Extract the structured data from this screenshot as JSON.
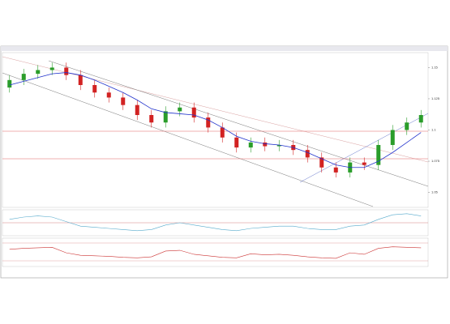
{
  "chart_data": [
    {
      "type": "candlestick",
      "open": [
        1.134,
        1.14,
        1.145,
        1.148,
        1.15,
        1.144,
        1.136,
        1.13,
        1.126,
        1.12,
        1.112,
        1.106,
        1.115,
        1.118,
        1.11,
        1.102,
        1.094,
        1.086,
        1.09,
        1.087,
        1.088,
        1.084,
        1.078,
        1.07,
        1.066,
        1.074,
        1.072,
        1.088,
        1.1,
        1.106
      ],
      "high": [
        1.144,
        1.149,
        1.152,
        1.154,
        1.154,
        1.148,
        1.14,
        1.134,
        1.13,
        1.124,
        1.116,
        1.119,
        1.122,
        1.122,
        1.114,
        1.106,
        1.098,
        1.094,
        1.094,
        1.092,
        1.092,
        1.088,
        1.082,
        1.074,
        1.078,
        1.078,
        1.092,
        1.104,
        1.11,
        1.116
      ],
      "low": [
        1.13,
        1.136,
        1.141,
        1.144,
        1.14,
        1.132,
        1.126,
        1.122,
        1.116,
        1.108,
        1.102,
        1.102,
        1.111,
        1.106,
        1.098,
        1.09,
        1.082,
        1.082,
        1.083,
        1.083,
        1.08,
        1.074,
        1.066,
        1.062,
        1.062,
        1.068,
        1.068,
        1.084,
        1.096,
        1.102
      ],
      "close": [
        1.14,
        1.145,
        1.148,
        1.15,
        1.144,
        1.136,
        1.13,
        1.126,
        1.12,
        1.112,
        1.106,
        1.115,
        1.118,
        1.11,
        1.102,
        1.094,
        1.086,
        1.09,
        1.087,
        1.088,
        1.084,
        1.078,
        1.07,
        1.066,
        1.074,
        1.072,
        1.088,
        1.1,
        1.106,
        1.112
      ],
      "up_color": "#2a9d2a",
      "down_color": "#d22222",
      "ma_color": "#2233cc",
      "ma_values": [
        1.136,
        1.139,
        1.142,
        1.145,
        1.146,
        1.144,
        1.14,
        1.135,
        1.13,
        1.124,
        1.117,
        1.114,
        1.113,
        1.112,
        1.108,
        1.102,
        1.095,
        1.091,
        1.089,
        1.088,
        1.086,
        1.082,
        1.077,
        1.072,
        1.07,
        1.07,
        1.075,
        1.082,
        1.09,
        1.098
      ],
      "ylim": [
        1.04,
        1.16
      ],
      "yticks": [
        1.05,
        1.075,
        1.1,
        1.125,
        1.15
      ]
    },
    {
      "type": "line",
      "color": "#55aacc",
      "values": [
        0.3,
        0.5,
        0.6,
        0.5,
        0.1,
        -0.3,
        -0.4,
        -0.5,
        -0.6,
        -0.7,
        -0.6,
        -0.2,
        0.0,
        -0.2,
        -0.4,
        -0.6,
        -0.7,
        -0.5,
        -0.4,
        -0.3,
        -0.3,
        -0.5,
        -0.6,
        -0.6,
        -0.3,
        -0.2,
        0.3,
        0.7,
        0.8,
        0.6
      ],
      "ylim": [
        -1,
        1
      ]
    },
    {
      "type": "line",
      "color": "#cc3333",
      "values": [
        62,
        66,
        68,
        70,
        48,
        38,
        36,
        34,
        30,
        28,
        32,
        55,
        58,
        42,
        36,
        30,
        28,
        44,
        40,
        42,
        38,
        32,
        28,
        26,
        48,
        42,
        66,
        72,
        70,
        68
      ],
      "ylim": [
        0,
        100
      ]
    }
  ]
}
